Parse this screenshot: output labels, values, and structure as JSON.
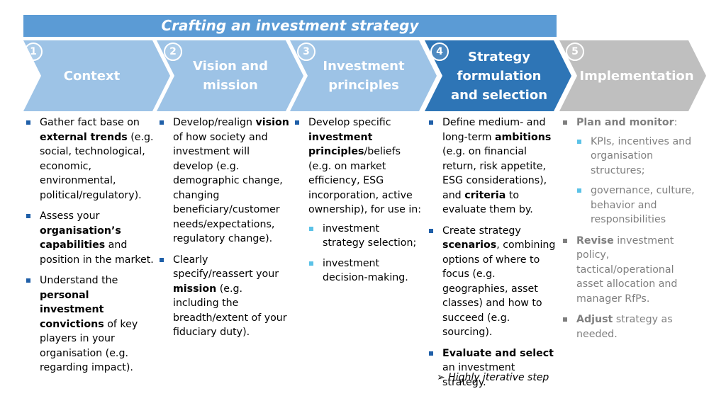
{
  "title": "Crafting an investment strategy",
  "colors": {
    "title_bar": "#5b9bd5",
    "step_light": "#9dc3e6",
    "step_active": "#2e75b6",
    "step_grey": "#bfbfbf",
    "bullet": "#1f5fa8",
    "sub_bullet": "#5bc2e7"
  },
  "steps": [
    {
      "number": "1",
      "label": "Context"
    },
    {
      "number": "2",
      "label": "Vision and mission"
    },
    {
      "number": "3",
      "label": "Investment principles"
    },
    {
      "number": "4",
      "label": "Strategy formulation and selection"
    },
    {
      "number": "5",
      "label": "Implementation"
    }
  ],
  "columns": [
    {
      "bullets": [
        {
          "parts": [
            {
              "text": "Gather fact base on "
            },
            {
              "text": "external trends",
              "bold": true
            },
            {
              "text": " (e.g. social, technological, economic, environmental, political/regulatory)."
            }
          ]
        },
        {
          "parts": [
            {
              "text": "Assess your "
            },
            {
              "text": "organisation’s capabilities",
              "bold": true
            },
            {
              "text": " and position in the market."
            }
          ]
        },
        {
          "parts": [
            {
              "text": "Understand the "
            },
            {
              "text": "personal investment convictions",
              "bold": true
            },
            {
              "text": " of key players in your organisation (e.g. regarding impact)."
            }
          ]
        }
      ]
    },
    {
      "bullets": [
        {
          "parts": [
            {
              "text": "Develop/realign "
            },
            {
              "text": "vision",
              "bold": true
            },
            {
              "text": " of how society and investment will develop (e.g. demographic change, changing beneficiary/customer needs/expectations, regulatory change)."
            }
          ]
        },
        {
          "parts": [
            {
              "text": "Clearly specify/reassert your "
            },
            {
              "text": "mission",
              "bold": true
            },
            {
              "text": " (e.g. including the breadth/extent of your fiduciary duty)."
            }
          ]
        }
      ]
    },
    {
      "bullets": [
        {
          "parts": [
            {
              "text": "Develop specific "
            },
            {
              "text": "investment principles",
              "bold": true
            },
            {
              "text": "/beliefs (e.g. on market efficiency, ESG incorporation, active ownership), for use in:"
            }
          ],
          "sub": [
            "investment strategy selection;",
            "investment decision-making."
          ]
        }
      ]
    },
    {
      "bullets": [
        {
          "parts": [
            {
              "text": "Define medium- and long-term "
            },
            {
              "text": "ambitions",
              "bold": true
            },
            {
              "text": " (e.g. on financial return, risk appetite, ESG considerations), and "
            },
            {
              "text": "criteria",
              "bold": true
            },
            {
              "text": " to evaluate them by."
            }
          ]
        },
        {
          "parts": [
            {
              "text": "Create strategy "
            },
            {
              "text": "scenarios",
              "bold": true
            },
            {
              "text": ", combining options of where to focus (e.g. geographies, asset classes) and how to succeed (e.g. sourcing)."
            }
          ]
        },
        {
          "parts": [
            {
              "text": "Evaluate and select",
              "bold": true
            },
            {
              "text": " an investment strategy."
            }
          ]
        }
      ],
      "note": "➢ Highly iterative step"
    },
    {
      "bullets": [
        {
          "parts": [
            {
              "text": "Plan and monitor",
              "bold": true
            },
            {
              "text": ":"
            }
          ],
          "sub": [
            "KPIs, incentives and organisation structures;",
            "governance, culture, behavior and responsibilities"
          ]
        },
        {
          "parts": [
            {
              "text": "Revise",
              "bold": true
            },
            {
              "text": " investment policy, tactical/operational asset allocation and manager RfPs."
            }
          ]
        },
        {
          "parts": [
            {
              "text": "Adjust",
              "bold": true
            },
            {
              "text": " strategy as needed."
            }
          ]
        }
      ]
    }
  ]
}
